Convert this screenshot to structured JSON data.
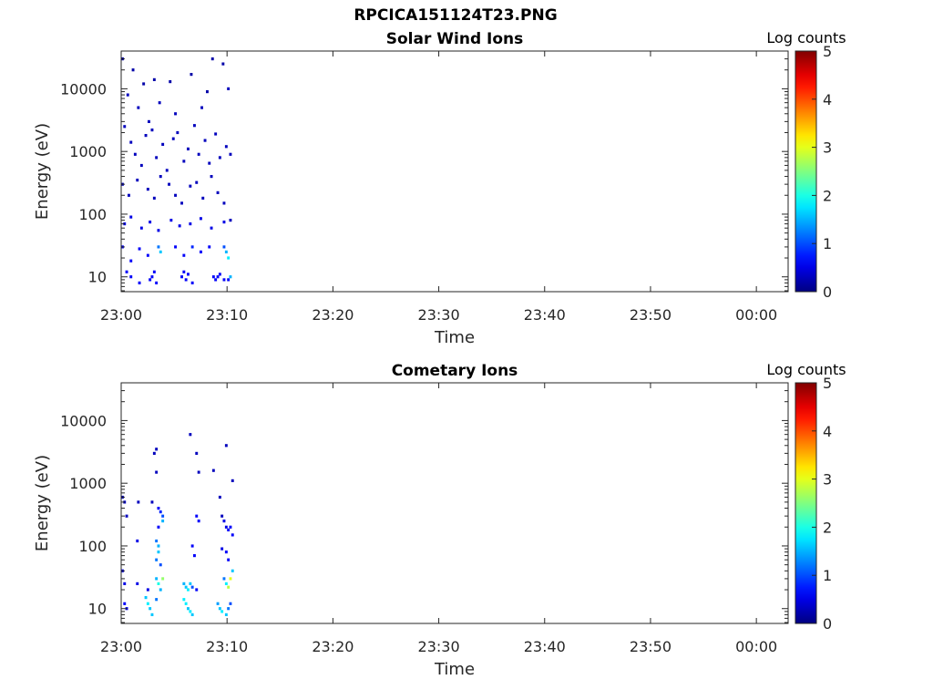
{
  "figure_title": "RPCICA151124T23.PNG",
  "chart_data": [
    {
      "type": "heatmap",
      "title": "Solar Wind Ions",
      "xlabel": "Time",
      "ylabel": "Energy (eV)",
      "x_ticks": [
        "23:00",
        "23:10",
        "23:20",
        "23:30",
        "23:40",
        "23:50",
        "00:00"
      ],
      "y_ticks": [
        "10",
        "100",
        "1000",
        "10000"
      ],
      "y_scale": "log",
      "ylim": [
        5.8,
        40000
      ],
      "xlim_minutes": [
        0,
        63
      ],
      "colorbar": {
        "label": "Log counts",
        "ticks": [
          "0",
          "1",
          "2",
          "3",
          "4",
          "5"
        ],
        "range": [
          0,
          5
        ],
        "colormap": "jet"
      },
      "data_note_minutes": [
        0,
        10.5
      ],
      "cells": [
        [
          0.0,
          30000,
          0.2
        ],
        [
          0.5,
          8000,
          0.3
        ],
        [
          1.0,
          20000,
          0.2
        ],
        [
          1.5,
          5000,
          0.3
        ],
        [
          2.0,
          12000,
          0.2
        ],
        [
          2.5,
          3000,
          0.3
        ],
        [
          3.0,
          14000,
          0.2
        ],
        [
          3.5,
          6000,
          0.3
        ],
        [
          4.5,
          13000,
          0.2
        ],
        [
          5.0,
          4000,
          0.3
        ],
        [
          6.5,
          17000,
          0.2
        ],
        [
          7.5,
          5000,
          0.3
        ],
        [
          8.0,
          9000,
          0.2
        ],
        [
          8.5,
          30000,
          0.2
        ],
        [
          9.5,
          25000,
          0.2
        ],
        [
          10.0,
          10000,
          0.3
        ],
        [
          0.2,
          2500,
          0.3
        ],
        [
          0.8,
          1400,
          0.3
        ],
        [
          1.2,
          900,
          0.3
        ],
        [
          1.8,
          600,
          0.3
        ],
        [
          2.2,
          1800,
          0.3
        ],
        [
          2.8,
          2200,
          0.3
        ],
        [
          3.2,
          800,
          0.3
        ],
        [
          3.8,
          1300,
          0.3
        ],
        [
          4.2,
          500,
          0.3
        ],
        [
          4.8,
          1600,
          0.3
        ],
        [
          5.2,
          2000,
          0.3
        ],
        [
          5.8,
          700,
          0.3
        ],
        [
          6.2,
          1100,
          0.3
        ],
        [
          6.8,
          2600,
          0.3
        ],
        [
          7.2,
          900,
          0.3
        ],
        [
          7.8,
          1500,
          0.3
        ],
        [
          8.2,
          650,
          0.3
        ],
        [
          8.8,
          1900,
          0.3
        ],
        [
          9.2,
          800,
          0.3
        ],
        [
          9.8,
          1200,
          0.3
        ],
        [
          10.2,
          900,
          0.3
        ],
        [
          0.0,
          300,
          0.3
        ],
        [
          0.6,
          200,
          0.3
        ],
        [
          1.4,
          350,
          0.3
        ],
        [
          2.4,
          250,
          0.3
        ],
        [
          3.0,
          180,
          0.3
        ],
        [
          3.6,
          400,
          0.3
        ],
        [
          4.4,
          300,
          0.3
        ],
        [
          5.0,
          200,
          0.3
        ],
        [
          5.6,
          150,
          0.3
        ],
        [
          6.4,
          280,
          0.3
        ],
        [
          7.0,
          320,
          0.3
        ],
        [
          7.6,
          180,
          0.3
        ],
        [
          8.4,
          400,
          0.3
        ],
        [
          9.0,
          220,
          0.3
        ],
        [
          9.6,
          150,
          0.3
        ],
        [
          10.2,
          80,
          0.3
        ],
        [
          0.2,
          70,
          0.5
        ],
        [
          0.8,
          90,
          0.5
        ],
        [
          1.8,
          60,
          0.5
        ],
        [
          2.6,
          75,
          0.5
        ],
        [
          3.4,
          55,
          0.5
        ],
        [
          4.6,
          80,
          0.5
        ],
        [
          5.4,
          65,
          0.5
        ],
        [
          6.4,
          70,
          0.5
        ],
        [
          7.4,
          85,
          0.5
        ],
        [
          8.4,
          60,
          0.5
        ],
        [
          9.6,
          75,
          0.5
        ],
        [
          0.0,
          30,
          0.6
        ],
        [
          0.8,
          18,
          0.6
        ],
        [
          1.6,
          28,
          0.6
        ],
        [
          2.4,
          22,
          0.6
        ],
        [
          3.4,
          30,
          1.2
        ],
        [
          3.6,
          25,
          1.6
        ],
        [
          5.0,
          30,
          0.6
        ],
        [
          5.8,
          22,
          0.6
        ],
        [
          6.6,
          30,
          0.8
        ],
        [
          7.4,
          25,
          0.6
        ],
        [
          8.2,
          30,
          0.6
        ],
        [
          9.6,
          30,
          1.0
        ],
        [
          9.8,
          25,
          1.5
        ],
        [
          10.0,
          20,
          1.8
        ],
        [
          0.4,
          12,
          0.6
        ],
        [
          0.8,
          10,
          0.6
        ],
        [
          1.6,
          8,
          0.6
        ],
        [
          2.6,
          9,
          0.6
        ],
        [
          2.8,
          10,
          0.6
        ],
        [
          3.0,
          12,
          0.6
        ],
        [
          3.2,
          8,
          0.6
        ],
        [
          5.6,
          10,
          0.6
        ],
        [
          5.8,
          12,
          0.6
        ],
        [
          6.0,
          9,
          0.6
        ],
        [
          6.2,
          11,
          0.6
        ],
        [
          6.6,
          8,
          0.6
        ],
        [
          8.6,
          10,
          0.6
        ],
        [
          8.8,
          9,
          0.6
        ],
        [
          9.0,
          10,
          0.6
        ],
        [
          9.2,
          11,
          0.6
        ],
        [
          9.6,
          9,
          0.6
        ],
        [
          10.0,
          9,
          0.6
        ],
        [
          10.2,
          10,
          1.5
        ]
      ]
    },
    {
      "type": "heatmap",
      "title": "Cometary Ions",
      "xlabel": "Time",
      "ylabel": "Energy (eV)",
      "x_ticks": [
        "23:00",
        "23:10",
        "23:20",
        "23:30",
        "23:40",
        "23:50",
        "00:00"
      ],
      "y_ticks": [
        "10",
        "100",
        "1000",
        "10000"
      ],
      "y_scale": "log",
      "ylim": [
        5.8,
        40000
      ],
      "xlim_minutes": [
        0,
        63
      ],
      "colorbar": {
        "label": "Log counts",
        "ticks": [
          "0",
          "1",
          "2",
          "3",
          "4",
          "5"
        ],
        "range": [
          0,
          5
        ],
        "colormap": "jet"
      },
      "cells": [
        [
          0.0,
          600,
          0.3
        ],
        [
          0.2,
          500,
          0.3
        ],
        [
          0.4,
          300,
          0.3
        ],
        [
          1.5,
          500,
          0.3
        ],
        [
          2.8,
          500,
          0.3
        ],
        [
          3.0,
          3000,
          0.3
        ],
        [
          3.2,
          3500,
          0.3
        ],
        [
          3.2,
          1500,
          0.3
        ],
        [
          6.4,
          6000,
          0.3
        ],
        [
          7.0,
          3000,
          0.3
        ],
        [
          7.2,
          1500,
          0.3
        ],
        [
          8.6,
          1600,
          0.3
        ],
        [
          9.8,
          4000,
          0.3
        ],
        [
          10.4,
          1100,
          0.3
        ],
        [
          3.4,
          400,
          0.6
        ],
        [
          3.6,
          350,
          0.8
        ],
        [
          3.8,
          300,
          1.0
        ],
        [
          3.8,
          250,
          1.5
        ],
        [
          3.4,
          200,
          0.6
        ],
        [
          7.0,
          300,
          0.6
        ],
        [
          7.2,
          250,
          0.6
        ],
        [
          9.2,
          600,
          0.3
        ],
        [
          9.4,
          300,
          0.3
        ],
        [
          9.6,
          250,
          0.5
        ],
        [
          9.8,
          200,
          0.5
        ],
        [
          10.0,
          180,
          0.6
        ],
        [
          10.2,
          200,
          0.6
        ],
        [
          10.4,
          150,
          0.6
        ],
        [
          1.4,
          120,
          0.5
        ],
        [
          3.2,
          120,
          1.2
        ],
        [
          3.4,
          100,
          1.5
        ],
        [
          3.4,
          80,
          1.6
        ],
        [
          3.2,
          60,
          1.2
        ],
        [
          3.6,
          50,
          1.0
        ],
        [
          6.6,
          100,
          0.6
        ],
        [
          6.8,
          70,
          0.6
        ],
        [
          9.4,
          90,
          0.5
        ],
        [
          9.8,
          80,
          0.6
        ],
        [
          10.0,
          60,
          0.6
        ],
        [
          0.0,
          40,
          0.5
        ],
        [
          0.2,
          25,
          0.5
        ],
        [
          1.4,
          25,
          0.5
        ],
        [
          2.4,
          20,
          0.5
        ],
        [
          3.2,
          30,
          1.5
        ],
        [
          3.4,
          25,
          2.0
        ],
        [
          3.6,
          20,
          1.5
        ],
        [
          3.8,
          30,
          2.6
        ],
        [
          5.8,
          25,
          1.5
        ],
        [
          6.0,
          22,
          1.6
        ],
        [
          6.2,
          20,
          1.8
        ],
        [
          6.4,
          25,
          1.6
        ],
        [
          6.6,
          22,
          1.0
        ],
        [
          7.0,
          20,
          0.6
        ],
        [
          9.6,
          30,
          1.2
        ],
        [
          9.8,
          25,
          1.8
        ],
        [
          10.0,
          22,
          2.8
        ],
        [
          10.2,
          30,
          3.0
        ],
        [
          10.4,
          40,
          1.6
        ],
        [
          0.2,
          12,
          0.6
        ],
        [
          0.4,
          10,
          0.6
        ],
        [
          2.2,
          15,
          1.6
        ],
        [
          2.4,
          12,
          1.8
        ],
        [
          2.6,
          10,
          1.6
        ],
        [
          2.8,
          8,
          1.6
        ],
        [
          3.2,
          14,
          1.2
        ],
        [
          5.8,
          14,
          1.8
        ],
        [
          6.0,
          12,
          1.8
        ],
        [
          6.2,
          10,
          1.6
        ],
        [
          6.4,
          9,
          1.8
        ],
        [
          6.6,
          8,
          1.6
        ],
        [
          9.0,
          12,
          1.4
        ],
        [
          9.2,
          10,
          1.6
        ],
        [
          9.4,
          9,
          1.8
        ],
        [
          9.8,
          8,
          1.6
        ],
        [
          10.0,
          10,
          1.2
        ],
        [
          10.2,
          12,
          1.0
        ]
      ]
    }
  ]
}
